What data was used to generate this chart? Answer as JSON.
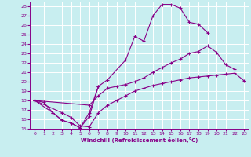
{
  "bg_color": "#c8eef0",
  "grid_color": "#ffffff",
  "line_color": "#880088",
  "xlabel": "Windchill (Refroidissement éolien,°C)",
  "xlim": [
    -0.5,
    23.5
  ],
  "ylim": [
    15,
    28.5
  ],
  "xticks": [
    0,
    1,
    2,
    3,
    4,
    5,
    6,
    7,
    8,
    9,
    10,
    11,
    12,
    13,
    14,
    15,
    16,
    17,
    18,
    19,
    20,
    21,
    22,
    23
  ],
  "yticks": [
    15,
    16,
    17,
    18,
    19,
    20,
    21,
    22,
    23,
    24,
    25,
    26,
    27,
    28
  ],
  "curve1_x": [
    0,
    2,
    3,
    4,
    5,
    6,
    7,
    8,
    10,
    11,
    12,
    13,
    14,
    15,
    16,
    17,
    18,
    19
  ],
  "curve1_y": [
    18.0,
    16.7,
    15.9,
    15.6,
    15.1,
    16.7,
    19.5,
    20.2,
    22.3,
    24.8,
    24.3,
    27.0,
    28.2,
    28.2,
    27.8,
    26.3,
    26.1,
    25.2
  ],
  "curve2_x": [
    0,
    1,
    2,
    3,
    4,
    5,
    6,
    7
  ],
  "curve2_y": [
    18.0,
    17.8,
    16.7,
    15.9,
    15.6,
    15.1,
    16.3,
    19.5
  ],
  "curve3_x": [
    0,
    6,
    7,
    8,
    9,
    10,
    11,
    12,
    13,
    14,
    15,
    16,
    17,
    18,
    19,
    20,
    21,
    22
  ],
  "curve3_y": [
    18.0,
    17.5,
    18.5,
    19.3,
    19.5,
    19.7,
    20.0,
    20.4,
    21.0,
    21.5,
    22.0,
    22.4,
    23.0,
    23.2,
    23.8,
    23.1,
    21.8,
    21.3
  ],
  "curve4_x": [
    0,
    3,
    4,
    5,
    6,
    7,
    8,
    9,
    10,
    11,
    12,
    13,
    14,
    15,
    16,
    17,
    18,
    19,
    20,
    21,
    22,
    23
  ],
  "curve4_y": [
    18.0,
    16.7,
    16.2,
    15.3,
    15.2,
    16.7,
    17.5,
    18.0,
    18.5,
    19.0,
    19.3,
    19.6,
    19.8,
    20.0,
    20.2,
    20.4,
    20.5,
    20.6,
    20.7,
    20.8,
    20.9,
    20.1
  ]
}
